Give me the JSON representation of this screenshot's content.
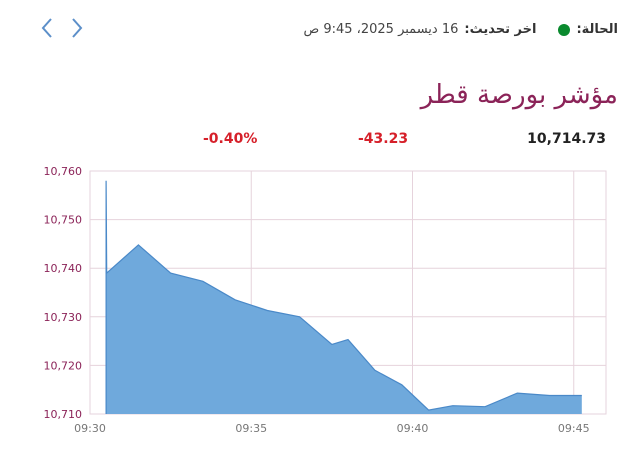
{
  "nav": {
    "prev_icon": "chevron-left-icon",
    "next_icon": "chevron-right-icon"
  },
  "status": {
    "label": "الحالة:",
    "indicator_color": "#0a8a2e",
    "update_label": "اخر تحديث:",
    "update_value": "16 ديسمبر 2025، 9:45 ص"
  },
  "index": {
    "title": "مؤشر بورصة قطر",
    "value": "10,714.73",
    "change": "-43.23",
    "change_pct": "-0.40%"
  },
  "chart_data": {
    "type": "area",
    "title": "",
    "xlabel": "",
    "ylabel": "",
    "x_ticks": [
      "09:30",
      "09:35",
      "09:40",
      "09:45"
    ],
    "y_ticks": [
      "10,760",
      "10,750",
      "10,740",
      "10,730",
      "10,720",
      "10,710"
    ],
    "ylim": [
      10710,
      10760
    ],
    "xlim": [
      "09:30",
      "09:46"
    ],
    "grid": true,
    "fill_color": "#6fa9dc",
    "line_color": "#4a89c8",
    "x": [
      "09:30:30",
      "09:30:30",
      "09:30:31",
      "09:31:30",
      "09:32:30",
      "09:33:30",
      "09:34:30",
      "09:35:30",
      "09:36:30",
      "09:37:30",
      "09:38:00",
      "09:38:50",
      "09:39:40",
      "09:40:30",
      "09:41:15",
      "09:42:15",
      "09:43:15",
      "09:44:15",
      "09:45:15"
    ],
    "values": [
      10710,
      10758,
      10739,
      10744.8,
      10739,
      10737.3,
      10733.5,
      10731.3,
      10730,
      10724.3,
      10725.3,
      10719,
      10716,
      10710.8,
      10711.7,
      10711.5,
      10714.3,
      10713.8,
      10713.8
    ]
  }
}
